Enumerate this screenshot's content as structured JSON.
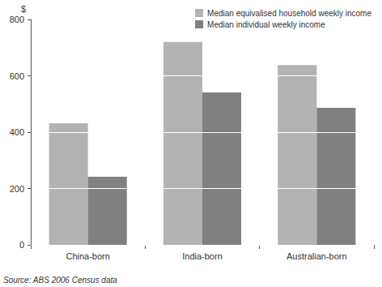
{
  "chart_data": {
    "type": "bar",
    "categories": [
      "China-born",
      "India-born",
      "Australian-born"
    ],
    "series": [
      {
        "name": "Median equivalised household weekly income",
        "color": "#b3b3b3",
        "values": [
          432,
          720,
          638
        ]
      },
      {
        "name": "Median individual weekly income",
        "color": "#808080",
        "values": [
          242,
          541,
          486
        ]
      }
    ],
    "ylabel": "$",
    "ylim": [
      0,
      800
    ],
    "yticks": [
      0,
      200,
      400,
      600,
      800
    ],
    "grid": true,
    "legend": "top-right",
    "annotations": [
      "Source: ABS 2006 Census data"
    ]
  }
}
